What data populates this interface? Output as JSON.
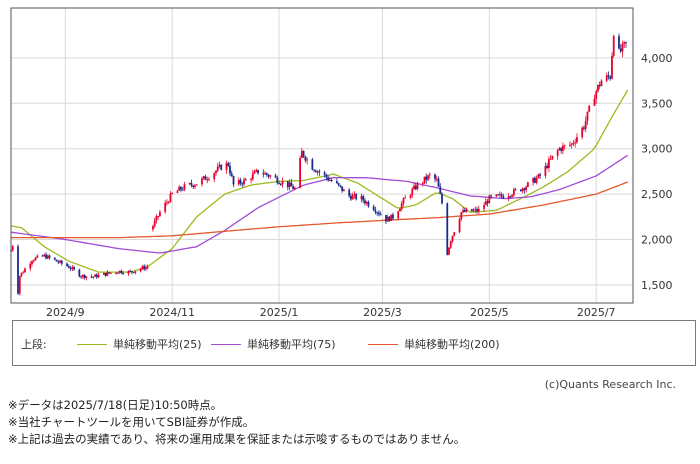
{
  "chart_data": {
    "type": "candlestick",
    "x_tick_labels": [
      "2024/9",
      "2024/11",
      "2025/1",
      "2025/3",
      "2025/5",
      "2025/7"
    ],
    "y_tick_labels": [
      "1,500",
      "2,000",
      "2,500",
      "3,000",
      "3,500",
      "4,000"
    ],
    "y_ticks": [
      1500,
      2000,
      2500,
      3000,
      3500,
      4000
    ],
    "ylim": [
      1300,
      4550
    ],
    "grid": true,
    "x_start": "2024-08-01",
    "x_end": "2025-07-22",
    "price_series": [
      [
        "2024-08-01",
        1880
      ],
      [
        "2024-08-02",
        1940
      ],
      [
        "2024-08-05",
        1420
      ],
      [
        "2024-08-06",
        1600
      ],
      [
        "2024-08-08",
        1650
      ],
      [
        "2024-08-13",
        1780
      ],
      [
        "2024-08-20",
        1820
      ],
      [
        "2024-08-27",
        1760
      ],
      [
        "2024-09-03",
        1700
      ],
      [
        "2024-09-10",
        1600
      ],
      [
        "2024-09-17",
        1590
      ],
      [
        "2024-09-24",
        1620
      ],
      [
        "2024-10-01",
        1650
      ],
      [
        "2024-10-08",
        1640
      ],
      [
        "2024-10-14",
        1680
      ],
      [
        "2024-10-18",
        1700
      ],
      [
        "2024-10-21",
        2150
      ],
      [
        "2024-10-25",
        2300
      ],
      [
        "2024-11-01",
        2500
      ],
      [
        "2024-11-08",
        2580
      ],
      [
        "2024-11-15",
        2620
      ],
      [
        "2024-11-22",
        2700
      ],
      [
        "2024-11-29",
        2800
      ],
      [
        "2024-12-03",
        2830
      ],
      [
        "2024-12-06",
        2600
      ],
      [
        "2024-12-13",
        2650
      ],
      [
        "2024-12-20",
        2750
      ],
      [
        "2024-12-27",
        2700
      ],
      [
        "2025-01-06",
        2600
      ],
      [
        "2025-01-10",
        2560
      ],
      [
        "2025-01-14",
        2960
      ],
      [
        "2025-01-20",
        2800
      ],
      [
        "2025-01-27",
        2700
      ],
      [
        "2025-02-03",
        2600
      ],
      [
        "2025-02-10",
        2480
      ],
      [
        "2025-02-17",
        2450
      ],
      [
        "2025-02-24",
        2350
      ],
      [
        "2025-03-03",
        2220
      ],
      [
        "2025-03-07",
        2250
      ],
      [
        "2025-03-14",
        2450
      ],
      [
        "2025-03-21",
        2600
      ],
      [
        "2025-03-28",
        2700
      ],
      [
        "2025-04-01",
        2650
      ],
      [
        "2025-04-04",
        2400
      ],
      [
        "2025-04-07",
        1850
      ],
      [
        "2025-04-09",
        2000
      ],
      [
        "2025-04-11",
        2100
      ],
      [
        "2025-04-15",
        2300
      ],
      [
        "2025-04-25",
        2320
      ],
      [
        "2025-05-01",
        2450
      ],
      [
        "2025-05-09",
        2480
      ],
      [
        "2025-05-16",
        2530
      ],
      [
        "2025-05-23",
        2600
      ],
      [
        "2025-05-30",
        2700
      ],
      [
        "2025-06-04",
        2850
      ],
      [
        "2025-06-10",
        3000
      ],
      [
        "2025-06-17",
        3050
      ],
      [
        "2025-06-24",
        3250
      ],
      [
        "2025-06-30",
        3600
      ],
      [
        "2025-07-04",
        3750
      ],
      [
        "2025-07-09",
        3800
      ],
      [
        "2025-07-11",
        4300
      ],
      [
        "2025-07-14",
        4050
      ],
      [
        "2025-07-16",
        4100
      ],
      [
        "2025-07-18",
        4150
      ]
    ],
    "ma_series": [
      {
        "name": "単純移動平均(25)",
        "color": "#9bbb1e",
        "points": [
          [
            "2024-08-01",
            2150
          ],
          [
            "2024-08-07",
            2130
          ],
          [
            "2024-08-20",
            1920
          ],
          [
            "2024-09-03",
            1760
          ],
          [
            "2024-09-20",
            1640
          ],
          [
            "2024-10-08",
            1640
          ],
          [
            "2024-10-18",
            1700
          ],
          [
            "2024-11-01",
            1900
          ],
          [
            "2024-11-15",
            2250
          ],
          [
            "2024-12-01",
            2500
          ],
          [
            "2024-12-16",
            2600
          ],
          [
            "2025-01-01",
            2640
          ],
          [
            "2025-01-15",
            2650
          ],
          [
            "2025-02-01",
            2720
          ],
          [
            "2025-02-15",
            2620
          ],
          [
            "2025-03-01",
            2450
          ],
          [
            "2025-03-10",
            2340
          ],
          [
            "2025-03-20",
            2380
          ],
          [
            "2025-04-01",
            2520
          ],
          [
            "2025-04-10",
            2450
          ],
          [
            "2025-04-20",
            2300
          ],
          [
            "2025-05-05",
            2320
          ],
          [
            "2025-05-20",
            2460
          ],
          [
            "2025-06-01",
            2580
          ],
          [
            "2025-06-15",
            2750
          ],
          [
            "2025-06-30",
            3000
          ],
          [
            "2025-07-10",
            3350
          ],
          [
            "2025-07-20",
            3680
          ]
        ]
      },
      {
        "name": "単純移動平均(75)",
        "color": "#a24cd6",
        "points": [
          [
            "2024-08-01",
            2080
          ],
          [
            "2024-09-01",
            2000
          ],
          [
            "2024-10-01",
            1900
          ],
          [
            "2024-10-25",
            1850
          ],
          [
            "2024-11-15",
            1920
          ],
          [
            "2024-12-01",
            2100
          ],
          [
            "2024-12-20",
            2350
          ],
          [
            "2025-01-15",
            2600
          ],
          [
            "2025-02-01",
            2680
          ],
          [
            "2025-02-20",
            2680
          ],
          [
            "2025-03-15",
            2640
          ],
          [
            "2025-04-01",
            2570
          ],
          [
            "2025-04-20",
            2480
          ],
          [
            "2025-05-10",
            2450
          ],
          [
            "2025-05-25",
            2470
          ],
          [
            "2025-06-10",
            2550
          ],
          [
            "2025-07-01",
            2700
          ],
          [
            "2025-07-20",
            2940
          ]
        ]
      },
      {
        "name": "単純移動平均(200)",
        "color": "#e4582d",
        "points": [
          [
            "2024-08-01",
            2020
          ],
          [
            "2024-10-01",
            2020
          ],
          [
            "2024-11-01",
            2040
          ],
          [
            "2024-12-01",
            2090
          ],
          [
            "2025-01-01",
            2140
          ],
          [
            "2025-02-01",
            2180
          ],
          [
            "2025-03-01",
            2210
          ],
          [
            "2025-04-01",
            2240
          ],
          [
            "2025-05-01",
            2280
          ],
          [
            "2025-06-01",
            2380
          ],
          [
            "2025-07-01",
            2500
          ],
          [
            "2025-07-20",
            2640
          ]
        ]
      }
    ]
  },
  "legend": {
    "prefix": "上段:",
    "items": [
      {
        "label": "単純移動平均(25)",
        "color": "#9bbb1e"
      },
      {
        "label": "単純移動平均(75)",
        "color": "#a24cd6"
      },
      {
        "label": "単純移動平均(200)",
        "color": "#e4582d"
      }
    ]
  },
  "copyright": "(c)Quants Research Inc.",
  "notes": [
    "※データは2025/7/18(日足)10:50時点。",
    "※当社チャートツールを用いてSBI証券が作成。",
    "※上記は過去の実績であり、将来の運用成果を保証または示唆するものではありません。"
  ],
  "colors": {
    "up": "#e8002d",
    "down": "#1a2b8c",
    "grid": "#d9d9d9",
    "frame": "#555555"
  }
}
